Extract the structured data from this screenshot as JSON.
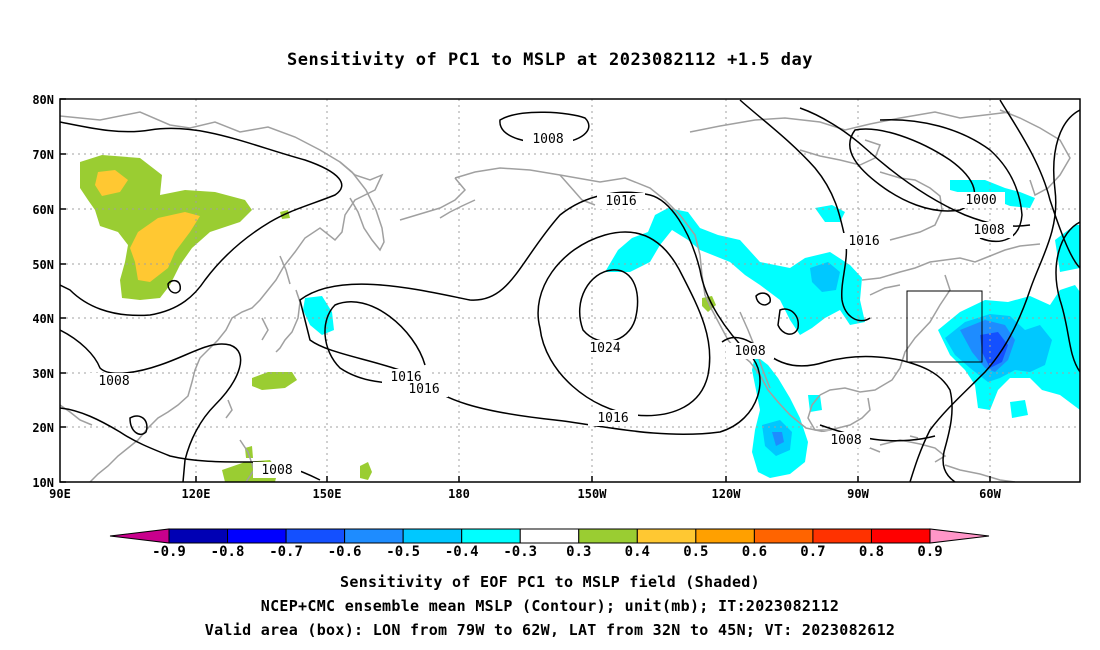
{
  "title": "Sensitivity of PC1 to MSLP at 2023082112 +1.5 day",
  "lat_labels": [
    "80N",
    "70N",
    "60N",
    "50N",
    "40N",
    "30N",
    "20N",
    "10N"
  ],
  "lon_labels": [
    "90E",
    "120E",
    "150E",
    "180",
    "150W",
    "120W",
    "90W",
    "60W"
  ],
  "contour_labels": {
    "c1008_top": "1008",
    "c1016_mid": "1016",
    "c1024": "1024",
    "c1016_low": "1016",
    "c1016_a": "1016",
    "c1016_b": "1016",
    "c1008_w": "1008",
    "c1008_sw": "1008",
    "c1008_e": "1008",
    "c1008_gulf": "1008",
    "c1016_ne": "1016",
    "c1000": "1000",
    "c1008_ne": "1008"
  },
  "colorbar": {
    "labels": [
      "-0.9",
      "-0.8",
      "-0.7",
      "-0.6",
      "-0.5",
      "-0.4",
      "-0.3",
      "0.3",
      "0.4",
      "0.5",
      "0.6",
      "0.7",
      "0.8",
      "0.9"
    ],
    "colors": [
      "#0000b4",
      "#0000ff",
      "#1450ff",
      "#1e8cff",
      "#00c8ff",
      "#00ffff",
      "#ffffff",
      "#9acd32",
      "#ffc832",
      "#ffa000",
      "#ff6400",
      "#ff3200",
      "#ff0000"
    ],
    "under_color": "#c8008c",
    "over_color": "#ff96c8"
  },
  "captions": [
    "Sensitivity of EOF PC1 to MSLP field (Shaded)",
    "NCEP+CMC ensemble mean MSLP (Contour); unit(mb); IT:2023082112",
    "Valid area (box): LON from 79W to 62W, LAT from 32N to 45N; VT: 2023082612"
  ]
}
